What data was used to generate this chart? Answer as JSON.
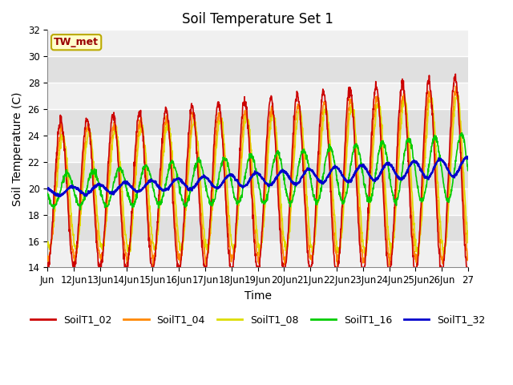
{
  "title": "Soil Temperature Set 1",
  "xlabel": "Time",
  "ylabel": "Soil Temperature (C)",
  "ylim": [
    14,
    32
  ],
  "xlim_start": 0,
  "xlim_end": 16,
  "xtick_labels": [
    "Jun",
    "12Jun",
    "13Jun",
    "14Jun",
    "15Jun",
    "16Jun",
    "17Jun",
    "18Jun",
    "19Jun",
    "20Jun",
    "21Jun",
    "22Jun",
    "23Jun",
    "24Jun",
    "25Jun",
    "26Jun",
    "27"
  ],
  "xtick_positions": [
    0,
    1,
    2,
    3,
    4,
    5,
    6,
    7,
    8,
    9,
    10,
    11,
    12,
    13,
    14,
    15,
    16
  ],
  "ytick_positions": [
    14,
    16,
    18,
    20,
    22,
    24,
    26,
    28,
    30,
    32
  ],
  "series_colors": {
    "SoilT1_02": "#cc0000",
    "SoilT1_04": "#ff8800",
    "SoilT1_08": "#dddd00",
    "SoilT1_16": "#00cc00",
    "SoilT1_32": "#0000cc"
  },
  "annotation_text": "TW_met",
  "bg_color": "#dcdcdc",
  "fig_bg": "#ffffff",
  "line_width": 1.2,
  "title_fontsize": 12,
  "axis_fontsize": 10,
  "tick_fontsize": 8.5,
  "band_colors": [
    "#f0f0f0",
    "#e0e0e0"
  ]
}
